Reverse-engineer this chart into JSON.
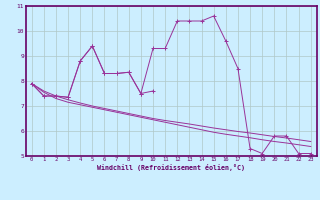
{
  "xlabel": "Windchill (Refroidissement éolien,°C)",
  "x": [
    0,
    1,
    2,
    3,
    4,
    5,
    6,
    7,
    8,
    9,
    10,
    11,
    12,
    13,
    14,
    15,
    16,
    17,
    18,
    19,
    20,
    21,
    22,
    23
  ],
  "line_jagged": [
    7.9,
    7.4,
    7.4,
    7.35,
    8.8,
    9.4,
    8.3,
    8.3,
    8.35,
    7.5,
    9.3,
    9.3,
    10.4,
    10.4,
    10.4,
    10.6,
    9.6,
    8.5,
    5.3,
    5.1,
    5.8,
    5.8,
    5.1,
    5.1
  ],
  "line_smooth1": [
    7.9,
    7.55,
    7.3,
    7.15,
    7.05,
    6.95,
    6.85,
    6.75,
    6.65,
    6.55,
    6.45,
    6.35,
    6.25,
    6.15,
    6.05,
    5.95,
    5.87,
    5.8,
    5.73,
    5.65,
    5.58,
    5.52,
    5.45,
    5.38
  ],
  "line_smooth2": [
    7.9,
    7.6,
    7.4,
    7.25,
    7.12,
    7.0,
    6.9,
    6.8,
    6.7,
    6.6,
    6.5,
    6.42,
    6.35,
    6.28,
    6.2,
    6.12,
    6.05,
    5.98,
    5.92,
    5.85,
    5.78,
    5.72,
    5.65,
    5.58
  ],
  "line_partial": [
    7.9,
    7.4,
    7.4,
    7.35,
    8.8,
    9.4,
    8.3,
    8.3,
    8.35,
    7.5,
    7.6,
    null,
    null,
    null,
    null,
    null,
    null,
    null,
    null,
    null,
    null,
    null,
    null,
    null
  ],
  "color": "#993399",
  "bg_color": "#cceeff",
  "grid_color": "#b0c8c8",
  "ylim": [
    5,
    11
  ],
  "xlim": [
    -0.5,
    23.5
  ],
  "yticks": [
    5,
    6,
    7,
    8,
    9,
    10,
    11
  ],
  "xticks": [
    0,
    1,
    2,
    3,
    4,
    5,
    6,
    7,
    8,
    9,
    10,
    11,
    12,
    13,
    14,
    15,
    16,
    17,
    18,
    19,
    20,
    21,
    22,
    23
  ]
}
